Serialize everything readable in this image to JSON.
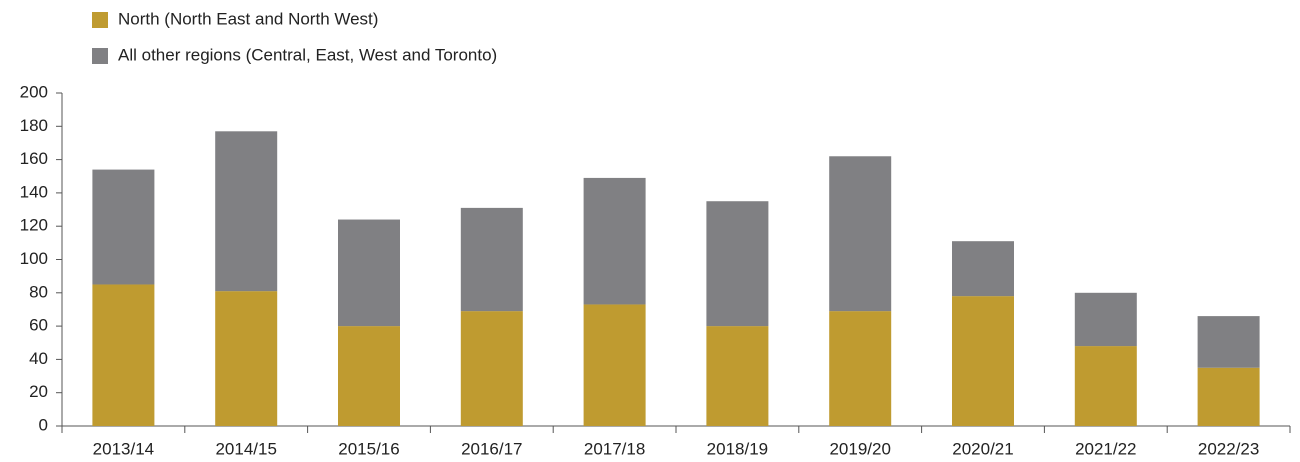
{
  "chart_data": {
    "type": "stacked_bar",
    "categories": [
      "2013/14",
      "2014/15",
      "2015/16",
      "2016/17",
      "2017/18",
      "2018/19",
      "2019/20",
      "2020/21",
      "2021/22",
      "2022/23"
    ],
    "series": [
      {
        "name": "North (North East and North West)",
        "color": "#bf9b30",
        "values": [
          85,
          81,
          60,
          69,
          73,
          60,
          69,
          78,
          48,
          35
        ]
      },
      {
        "name": "All other regions (Central, East, West and Toronto)",
        "color": "#808083",
        "values": [
          69,
          96,
          64,
          62,
          76,
          75,
          93,
          33,
          32,
          31
        ]
      }
    ],
    "ylim": [
      0,
      200
    ],
    "yticks": [
      0,
      20,
      40,
      60,
      80,
      100,
      120,
      140,
      160,
      180,
      200
    ],
    "legend": "top-left"
  }
}
